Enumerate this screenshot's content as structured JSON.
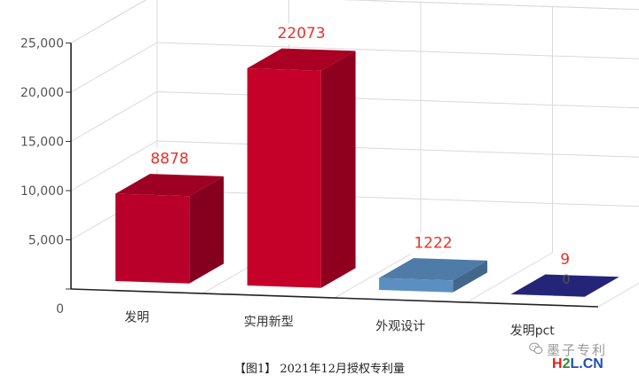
{
  "chart_data": {
    "type": "bar",
    "projection": "3d",
    "categories": [
      "发明",
      "实用新型",
      "外观设计",
      "发明pct"
    ],
    "values": [
      8878,
      22073,
      1222,
      9
    ],
    "data_labels": [
      "8878",
      "22073",
      "1222",
      "9"
    ],
    "colors": [
      "#b8002a",
      "#c50029",
      "#5b8fc2",
      "#2a2a8c"
    ],
    "y_ticks": [
      "0",
      "5,000",
      "10,000",
      "15,000",
      "20,000",
      "25,000"
    ],
    "ylim": [
      0,
      25000
    ],
    "grid": true,
    "legend": "none",
    "zero_label": "0",
    "label_color": "#e8322a"
  },
  "caption": "【图1】 2021年12月授权专利量",
  "watermark": {
    "icon": "wechat-icon",
    "line1": "墨子专利",
    "line2_parts": [
      "H",
      "2",
      "L",
      ".CN"
    ],
    "line2_colors": [
      "#e02020",
      "#2e8b3a",
      "#1f4fbf",
      "#1f4fbf"
    ]
  }
}
